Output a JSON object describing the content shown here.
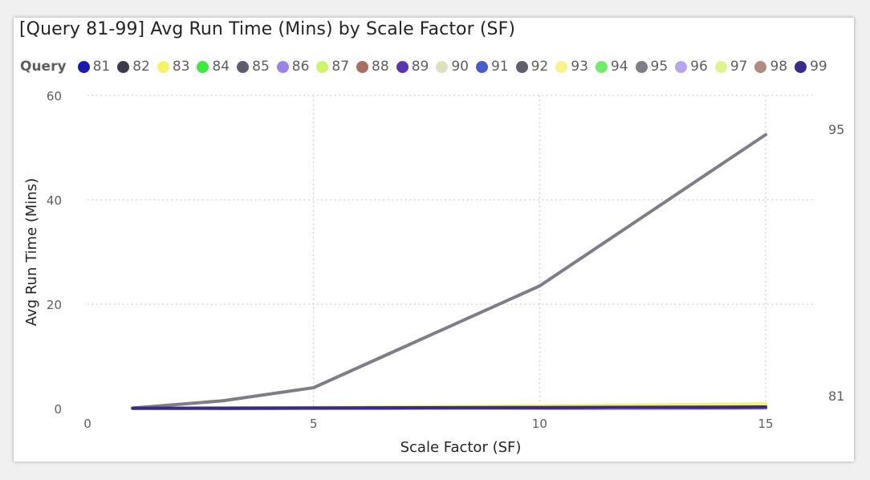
{
  "chart_data": {
    "type": "line",
    "title": "[Query 81-99] Avg Run Time (Mins) by Scale Factor (SF)",
    "legend_title": "Query",
    "legend_position": "top-left",
    "xlabel": "Scale Factor (SF)",
    "ylabel": "Avg Run Time (Mins)",
    "xlim": [
      -0.2,
      16.5
    ],
    "ylim": [
      0,
      60
    ],
    "x_ticks": [
      0,
      5,
      10,
      15
    ],
    "y_ticks": [
      0,
      20,
      40,
      60
    ],
    "grid": true,
    "x": [
      1,
      3,
      5,
      10,
      15
    ],
    "series": [
      {
        "name": "81",
        "color": "#1a1ab3",
        "values": [
          0.05,
          0.08,
          0.12,
          0.2,
          0.3
        ]
      },
      {
        "name": "82",
        "color": "#3a3a4a",
        "values": [
          0.03,
          0.05,
          0.08,
          0.14,
          0.2
        ]
      },
      {
        "name": "83",
        "color": "#f4f46a",
        "values": [
          0.05,
          0.1,
          0.2,
          0.5,
          0.9
        ]
      },
      {
        "name": "84",
        "color": "#3ee83e",
        "values": [
          0.04,
          0.07,
          0.12,
          0.25,
          0.45
        ]
      },
      {
        "name": "85",
        "color": "#5d5d6e",
        "values": [
          0.04,
          0.06,
          0.1,
          0.2,
          0.35
        ]
      },
      {
        "name": "86",
        "color": "#9d82e6",
        "values": [
          0.03,
          0.05,
          0.08,
          0.15,
          0.25
        ]
      },
      {
        "name": "87",
        "color": "#cdf56c",
        "values": [
          0.05,
          0.09,
          0.15,
          0.35,
          0.6
        ]
      },
      {
        "name": "88",
        "color": "#a86e63",
        "values": [
          0.03,
          0.05,
          0.07,
          0.12,
          0.2
        ]
      },
      {
        "name": "89",
        "color": "#5a35b0",
        "values": [
          0.03,
          0.04,
          0.06,
          0.1,
          0.15
        ]
      },
      {
        "name": "90",
        "color": "#e0e0c0",
        "values": [
          0.04,
          0.07,
          0.11,
          0.25,
          0.4
        ]
      },
      {
        "name": "91",
        "color": "#4a5ccc",
        "values": [
          0.02,
          0.03,
          0.05,
          0.09,
          0.12
        ]
      },
      {
        "name": "92",
        "color": "#5f5f70",
        "values": [
          0.03,
          0.05,
          0.07,
          0.13,
          0.22
        ]
      },
      {
        "name": "93",
        "color": "#f6f48a",
        "values": [
          0.05,
          0.09,
          0.15,
          0.35,
          0.55
        ]
      },
      {
        "name": "94",
        "color": "#72ea6a",
        "values": [
          0.04,
          0.06,
          0.1,
          0.2,
          0.3
        ]
      },
      {
        "name": "95",
        "color": "#7f7d88",
        "values": [
          0.1,
          1.5,
          4,
          23.5,
          52.5
        ]
      },
      {
        "name": "96",
        "color": "#b7a6ec",
        "values": [
          0.03,
          0.05,
          0.08,
          0.15,
          0.25
        ]
      },
      {
        "name": "97",
        "color": "#ddf58e",
        "values": [
          0.04,
          0.07,
          0.12,
          0.25,
          0.4
        ]
      },
      {
        "name": "98",
        "color": "#b08b82",
        "values": [
          0.03,
          0.05,
          0.08,
          0.14,
          0.22
        ]
      },
      {
        "name": "99",
        "color": "#3b2a8a",
        "values": [
          0.05,
          0.08,
          0.12,
          0.2,
          0.3
        ]
      }
    ],
    "end_labels": [
      "95",
      "81"
    ]
  }
}
